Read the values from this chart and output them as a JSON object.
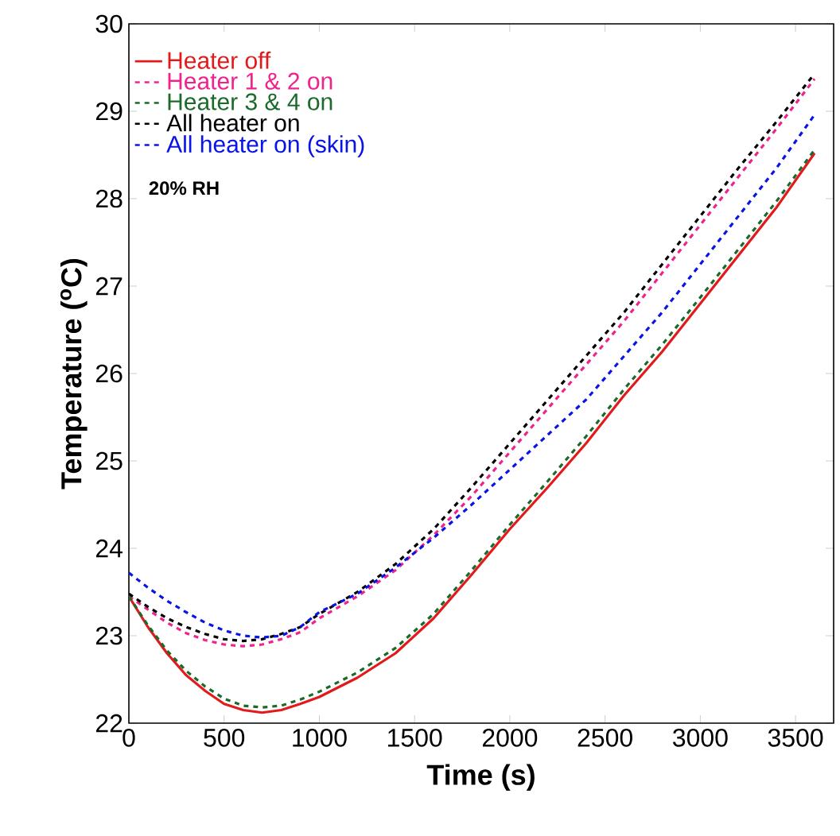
{
  "chart_data": {
    "type": "line",
    "xlabel": "Time (s)",
    "ylabel": "Temperature ($^{o}$C)",
    "xlim": [
      0,
      3700
    ],
    "ylim": [
      22,
      30
    ],
    "xticks": [
      0,
      500,
      1000,
      1500,
      2000,
      2500,
      3000,
      3500
    ],
    "yticks": [
      22,
      23,
      24,
      25,
      26,
      27,
      28,
      29,
      30
    ],
    "grid": false,
    "legend": "top left",
    "marker": "none",
    "annotations": [
      "20% RH"
    ],
    "x": [
      0,
      100,
      200,
      300,
      400,
      500,
      600,
      700,
      800,
      900,
      1000,
      1200,
      1400,
      1600,
      1800,
      2000,
      2200,
      2400,
      2600,
      2800,
      3000,
      3200,
      3400,
      3600
    ],
    "series": [
      {
        "name": "Heater off",
        "color": "#e31a1c",
        "line_style": "solid",
        "values": [
          23.45,
          23.1,
          22.8,
          22.55,
          22.37,
          22.22,
          22.15,
          22.12,
          22.15,
          22.22,
          22.3,
          22.52,
          22.8,
          23.2,
          23.7,
          24.22,
          24.7,
          25.2,
          25.75,
          26.25,
          26.8,
          27.35,
          27.9,
          28.52
        ]
      },
      {
        "name": "Heater 1 & 2 on",
        "color": "#f0238c",
        "line_style": "dashed",
        "values": [
          23.45,
          23.3,
          23.15,
          23.03,
          22.95,
          22.9,
          22.88,
          22.9,
          22.96,
          23.04,
          23.2,
          23.45,
          23.75,
          24.15,
          24.6,
          25.1,
          25.6,
          26.1,
          26.6,
          27.15,
          27.7,
          28.25,
          28.8,
          29.37
        ]
      },
      {
        "name": "Heater 3 & 4 on",
        "color": "#1a6b2a",
        "line_style": "dashed",
        "values": [
          23.45,
          23.12,
          22.83,
          22.6,
          22.42,
          22.28,
          22.2,
          22.18,
          22.2,
          22.27,
          22.36,
          22.58,
          22.86,
          23.25,
          23.75,
          24.27,
          24.77,
          25.28,
          25.82,
          26.33,
          26.87,
          27.42,
          27.97,
          28.56
        ]
      },
      {
        "name": "All heater on",
        "color": "#000000",
        "line_style": "dashed",
        "values": [
          23.48,
          23.33,
          23.2,
          23.1,
          23.02,
          22.96,
          22.94,
          22.96,
          23.02,
          23.1,
          23.25,
          23.5,
          23.82,
          24.22,
          24.7,
          25.2,
          25.7,
          26.2,
          26.7,
          27.25,
          27.8,
          28.35,
          28.88,
          29.43
        ]
      },
      {
        "name": "All heater on (skin)",
        "color": "#0a14e6",
        "line_style": "dashed",
        "values": [
          23.72,
          23.55,
          23.4,
          23.27,
          23.15,
          23.06,
          23.0,
          22.98,
          23.0,
          23.1,
          23.27,
          23.48,
          23.78,
          24.12,
          24.5,
          24.9,
          25.3,
          25.7,
          26.2,
          26.7,
          27.25,
          27.8,
          28.35,
          28.96
        ]
      }
    ]
  }
}
